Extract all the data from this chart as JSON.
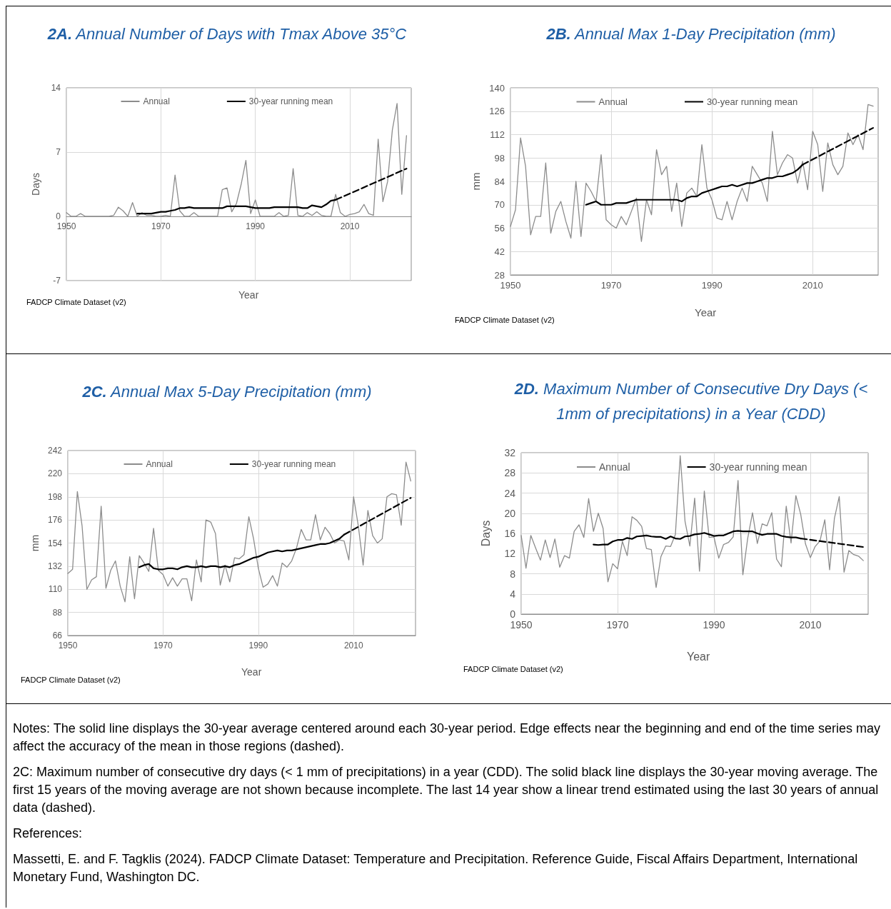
{
  "chart_data": [
    {
      "type": "line",
      "title": "2A. Annual Number of Days with Tmax Above 35°C",
      "xlabel": "Year",
      "ylabel": "Days",
      "annotations": [
        "FADCP Climate Dataset (v2)"
      ],
      "xlim": [
        1950,
        2023
      ],
      "xticks": [
        1950,
        1970,
        1990,
        2010
      ],
      "ylim": [
        -7,
        14
      ],
      "yticks": [
        -7,
        0,
        7,
        14
      ],
      "grid": true,
      "legend": "top",
      "marker": "none",
      "line_style": "solid",
      "x": [
        1950,
        1951,
        1952,
        1953,
        1954,
        1955,
        1956,
        1957,
        1958,
        1959,
        1960,
        1961,
        1962,
        1963,
        1964,
        1965,
        1966,
        1967,
        1968,
        1969,
        1970,
        1971,
        1972,
        1973,
        1974,
        1975,
        1976,
        1977,
        1978,
        1979,
        1980,
        1981,
        1982,
        1983,
        1984,
        1985,
        1986,
        1987,
        1988,
        1989,
        1990,
        1991,
        1992,
        1993,
        1994,
        1995,
        1996,
        1997,
        1998,
        1999,
        2000,
        2001,
        2002,
        2003,
        2004,
        2005,
        2006,
        2007,
        2008,
        2009,
        2010,
        2011,
        2012,
        2013,
        2014,
        2015,
        2016,
        2017,
        2018,
        2019,
        2020,
        2021,
        2022
      ],
      "series": [
        {
          "name": "Annual",
          "color": "#8c8c8c",
          "values": [
            0.4,
            0,
            0,
            0.3,
            0,
            0,
            0,
            0,
            0,
            0,
            0.1,
            1.0,
            0.6,
            0,
            1.5,
            0,
            0.4,
            0.1,
            0.1,
            0,
            0,
            0.1,
            0,
            4.5,
            0.6,
            0,
            0,
            0.4,
            0,
            0,
            0,
            0,
            0,
            2.9,
            3.1,
            0.5,
            1.4,
            3.5,
            6.1,
            0.3,
            1.8,
            0,
            0,
            0,
            0,
            0.4,
            0,
            0.1,
            5.2,
            0.1,
            0,
            0.4,
            0.1,
            0.5,
            0.1,
            0,
            0,
            2.4,
            0.4,
            0,
            0.2,
            0.3,
            0.5,
            1.3,
            0.3,
            0.1,
            8.4,
            1.6,
            3.8,
            9.4,
            12.3,
            2.4,
            8.8
          ]
        },
        {
          "name": "30-year running mean",
          "color": "#000000",
          "x": [
            1965,
            1966,
            1967,
            1968,
            1969,
            1970,
            1971,
            1972,
            1973,
            1974,
            1975,
            1976,
            1977,
            1978,
            1979,
            1980,
            1981,
            1982,
            1983,
            1984,
            1985,
            1986,
            1987,
            1988,
            1989,
            1990,
            1991,
            1992,
            1993,
            1994,
            1995,
            1996,
            1997,
            1998,
            1999,
            2000,
            2001,
            2002,
            2003,
            2004,
            2005,
            2006,
            2007
          ],
          "values": [
            0.3,
            0.3,
            0.3,
            0.3,
            0.4,
            0.5,
            0.5,
            0.6,
            0.7,
            0.9,
            0.9,
            1.0,
            0.9,
            0.9,
            0.9,
            0.9,
            0.9,
            0.9,
            0.9,
            1.1,
            1.1,
            1.1,
            1.1,
            1.1,
            1.0,
            0.9,
            0.9,
            0.9,
            0.9,
            1.0,
            1.0,
            1.0,
            1.0,
            1.0,
            1.0,
            0.9,
            0.9,
            1.2,
            1.1,
            1.0,
            1.3,
            1.7,
            1.8
          ]
        },
        {
          "color": "#000000",
          "line_style": "dashed",
          "x": [
            2007,
            2022
          ],
          "values": [
            1.8,
            5.2
          ]
        }
      ]
    },
    {
      "type": "line",
      "title": "2B. Annual Max 1-Day Precipitation (mm)",
      "xlabel": "Year",
      "ylabel": "mm",
      "annotations": [
        "FADCP Climate Dataset (v2)"
      ],
      "xlim": [
        1950,
        2023
      ],
      "xticks": [
        1950,
        1970,
        1990,
        2010
      ],
      "ylim": [
        28,
        140
      ],
      "yticks": [
        28,
        42,
        56,
        70,
        84,
        98,
        112,
        126,
        140
      ],
      "grid": true,
      "legend": "top",
      "marker": "none",
      "line_style": "solid",
      "x": [
        1950,
        1951,
        1952,
        1953,
        1954,
        1955,
        1956,
        1957,
        1958,
        1959,
        1960,
        1961,
        1962,
        1963,
        1964,
        1965,
        1966,
        1967,
        1968,
        1969,
        1970,
        1971,
        1972,
        1973,
        1974,
        1975,
        1976,
        1977,
        1978,
        1979,
        1980,
        1981,
        1982,
        1983,
        1984,
        1985,
        1986,
        1987,
        1988,
        1989,
        1990,
        1991,
        1992,
        1993,
        1994,
        1995,
        1996,
        1997,
        1998,
        1999,
        2000,
        2001,
        2002,
        2003,
        2004,
        2005,
        2006,
        2007,
        2008,
        2009,
        2010,
        2011,
        2012,
        2013,
        2014,
        2015,
        2016,
        2017,
        2018,
        2019,
        2020,
        2021,
        2022
      ],
      "series": [
        {
          "name": "Annual",
          "color": "#8c8c8c",
          "values": [
            57,
            67,
            110,
            93,
            52,
            63,
            63,
            95,
            53,
            66,
            72,
            60,
            50,
            84,
            51,
            83,
            78,
            72,
            100,
            61,
            58,
            56,
            63,
            58,
            66,
            74,
            48,
            73,
            64,
            103,
            88,
            93,
            66,
            83,
            57,
            77,
            80,
            75,
            106,
            80,
            73,
            62,
            61,
            72,
            61,
            72,
            80,
            72,
            93,
            88,
            83,
            72,
            114,
            88,
            95,
            100,
            98,
            83,
            96,
            79,
            114,
            106,
            78,
            107,
            94,
            88,
            93,
            113,
            106,
            112,
            103,
            130,
            129
          ]
        },
        {
          "name": "30-year running mean",
          "color": "#000000",
          "x": [
            1965,
            1966,
            1967,
            1968,
            1969,
            1970,
            1971,
            1972,
            1973,
            1974,
            1975,
            1976,
            1977,
            1978,
            1979,
            1980,
            1981,
            1982,
            1983,
            1984,
            1985,
            1986,
            1987,
            1988,
            1989,
            1990,
            1991,
            1992,
            1993,
            1994,
            1995,
            1996,
            1997,
            1998,
            1999,
            2000,
            2001,
            2002,
            2003,
            2004,
            2005,
            2006,
            2007,
            2008
          ],
          "values": [
            70,
            71,
            72,
            70,
            70,
            70,
            71,
            71,
            71,
            72,
            73,
            73,
            73,
            73,
            73,
            73,
            73,
            73,
            73,
            72,
            74,
            75,
            75,
            77,
            78,
            79,
            80,
            81,
            81,
            82,
            81,
            82,
            83,
            83,
            84,
            85,
            86,
            86,
            87,
            87,
            88,
            89,
            91,
            94
          ]
        },
        {
          "color": "#000000",
          "line_style": "dashed",
          "x": [
            2008,
            2022
          ],
          "values": [
            94,
            116
          ]
        }
      ]
    },
    {
      "type": "line",
      "title": "2C. Annual Max 5-Day Precipitation (mm)",
      "xlabel": "Year",
      "ylabel": "mm",
      "annotations": [
        "FADCP Climate Dataset (v2)"
      ],
      "xlim": [
        1950,
        2023
      ],
      "xticks": [
        1950,
        1970,
        1990,
        2010
      ],
      "ylim": [
        66,
        242
      ],
      "yticks": [
        66,
        88,
        110,
        132,
        154,
        176,
        198,
        220,
        242
      ],
      "grid": true,
      "legend": "top",
      "marker": "none",
      "line_style": "solid",
      "x": [
        1950,
        1951,
        1952,
        1953,
        1954,
        1955,
        1956,
        1957,
        1958,
        1959,
        1960,
        1961,
        1962,
        1963,
        1964,
        1965,
        1966,
        1967,
        1968,
        1969,
        1970,
        1971,
        1972,
        1973,
        1974,
        1975,
        1976,
        1977,
        1978,
        1979,
        1980,
        1981,
        1982,
        1983,
        1984,
        1985,
        1986,
        1987,
        1988,
        1989,
        1990,
        1991,
        1992,
        1993,
        1994,
        1995,
        1996,
        1997,
        1998,
        1999,
        2000,
        2001,
        2002,
        2003,
        2004,
        2005,
        2006,
        2007,
        2008,
        2009,
        2010,
        2011,
        2012,
        2013,
        2014,
        2015,
        2016,
        2017,
        2018,
        2019,
        2020,
        2021,
        2022
      ],
      "series": [
        {
          "name": "Annual",
          "color": "#8c8c8c",
          "values": [
            125,
            129,
            203,
            170,
            110,
            119,
            122,
            189,
            111,
            128,
            137,
            113,
            98,
            141,
            101,
            142,
            135,
            127,
            168,
            128,
            124,
            113,
            121,
            113,
            120,
            120,
            99,
            138,
            117,
            176,
            174,
            163,
            114,
            133,
            117,
            140,
            139,
            143,
            179,
            158,
            130,
            112,
            115,
            123,
            113,
            135,
            131,
            137,
            149,
            167,
            157,
            157,
            181,
            157,
            169,
            163,
            154,
            157,
            156,
            138,
            198,
            170,
            133,
            185,
            161,
            154,
            158,
            198,
            201,
            200,
            171,
            231,
            213
          ]
        },
        {
          "name": "30-year running mean",
          "color": "#000000",
          "x": [
            1965,
            1966,
            1967,
            1968,
            1969,
            1970,
            1971,
            1972,
            1973,
            1974,
            1975,
            1976,
            1977,
            1978,
            1979,
            1980,
            1981,
            1982,
            1983,
            1984,
            1985,
            1986,
            1987,
            1988,
            1989,
            1990,
            1991,
            1992,
            1993,
            1994,
            1995,
            1996,
            1997,
            1998,
            1999,
            2000,
            2001,
            2002,
            2003,
            2004,
            2005,
            2006,
            2007,
            2008
          ],
          "values": [
            131,
            133,
            134,
            130,
            129,
            129,
            130,
            130,
            129,
            131,
            132,
            131,
            131,
            132,
            131,
            132,
            132,
            131,
            132,
            131,
            133,
            134,
            136,
            138,
            140,
            141,
            143,
            145,
            146,
            147,
            146,
            147,
            147,
            148,
            149,
            150,
            151,
            152,
            153,
            153,
            154,
            156,
            158,
            162
          ]
        },
        {
          "color": "#000000",
          "line_style": "dashed",
          "x": [
            2008,
            2022
          ],
          "values": [
            162,
            197
          ]
        }
      ]
    },
    {
      "type": "line",
      "title": "2D. Maximum Number of Consecutive Dry Days (< 1mm of precipitations) in a Year (CDD)",
      "xlabel": "Year",
      "ylabel": "Days",
      "annotations": [
        "FADCP Climate Dataset (v2)"
      ],
      "xlim": [
        1950,
        2022
      ],
      "xticks": [
        1950,
        1970,
        1990,
        2010
      ],
      "ylim": [
        0,
        32
      ],
      "yticks": [
        0,
        4,
        8,
        12,
        16,
        20,
        24,
        28,
        32
      ],
      "grid": true,
      "legend": "top",
      "marker": "none",
      "line_style": "solid",
      "x": [
        1950,
        1951,
        1952,
        1953,
        1954,
        1955,
        1956,
        1957,
        1958,
        1959,
        1960,
        1961,
        1962,
        1963,
        1964,
        1965,
        1966,
        1967,
        1968,
        1969,
        1970,
        1971,
        1972,
        1973,
        1974,
        1975,
        1976,
        1977,
        1978,
        1979,
        1980,
        1981,
        1982,
        1983,
        1984,
        1985,
        1986,
        1987,
        1988,
        1989,
        1990,
        1991,
        1992,
        1993,
        1994,
        1995,
        1996,
        1997,
        1998,
        1999,
        2000,
        2001,
        2002,
        2003,
        2004,
        2005,
        2006,
        2007,
        2008,
        2009,
        2010,
        2011,
        2012,
        2013,
        2014,
        2015,
        2016,
        2017,
        2018,
        2019,
        2020,
        2021
      ],
      "series": [
        {
          "name": "Annual",
          "color": "#8c8c8c",
          "values": [
            15.6,
            9.1,
            15.6,
            13.1,
            10.7,
            14.7,
            11.2,
            14.9,
            9.3,
            11.6,
            11.1,
            16.4,
            17.7,
            15.2,
            22.9,
            16.4,
            20.0,
            17.0,
            6.4,
            10.0,
            9.0,
            14.4,
            11.6,
            19.3,
            18.6,
            17.4,
            13.0,
            12.8,
            5.3,
            11.4,
            13.5,
            13.4,
            15.8,
            31.4,
            18.4,
            13.5,
            23.0,
            8.5,
            24.4,
            15.2,
            15.3,
            11.1,
            13.8,
            14.2,
            15.3,
            26.5,
            7.8,
            15.0,
            20.1,
            14.0,
            17.9,
            17.5,
            20.1,
            10.9,
            9.4,
            21.4,
            14.1,
            23.5,
            19.8,
            13.9,
            11.2,
            13.4,
            14.5,
            18.7,
            8.8,
            19.0,
            23.3,
            8.3,
            12.6,
            11.8,
            11.5,
            10.6
          ]
        },
        {
          "name": "30-year running mean",
          "color": "#000000",
          "x": [
            1965,
            1966,
            1967,
            1968,
            1969,
            1970,
            1971,
            1972,
            1973,
            1974,
            1975,
            1976,
            1977,
            1978,
            1979,
            1980,
            1981,
            1982,
            1983,
            1984,
            1985,
            1986,
            1987,
            1988,
            1989,
            1990,
            1991,
            1992,
            1993,
            1994,
            1995,
            1996,
            1997,
            1998,
            1999,
            2000,
            2001,
            2002,
            2003,
            2004,
            2005,
            2006,
            2007,
            2008
          ],
          "values": [
            13.8,
            13.7,
            13.8,
            13.8,
            14.4,
            14.7,
            14.7,
            15.1,
            14.9,
            15.4,
            15.5,
            15.6,
            15.4,
            15.3,
            15.3,
            14.9,
            15.4,
            15.0,
            14.9,
            15.4,
            15.5,
            15.8,
            15.9,
            16.1,
            15.8,
            15.5,
            15.6,
            15.6,
            16.0,
            16.4,
            16.5,
            16.4,
            16.4,
            16.4,
            16.0,
            15.7,
            15.9,
            15.9,
            15.9,
            15.5,
            15.3,
            15.2,
            15.2,
            15.0
          ]
        },
        {
          "color": "#000000",
          "line_style": "dashed",
          "x": [
            2008,
            2021
          ],
          "values": [
            15.0,
            13.3
          ]
        }
      ]
    },
    {
      "type": "other",
      "annotations": [
        "Notes: The solid line displays the 30-year average centered around each 30-year period. Edge effects near the beginning and end of the time series may affect the accuracy of the mean in those regions (dashed).",
        "2C: Maximum number of consecutive dry days (< 1 mm of precipitations) in a year (CDD). The solid black line displays the 30-year moving average. The first 15 years of the moving average are not shown because incomplete. The last 14 year show a linear trend estimated using the last 30 years of annual data (dashed).",
        "References:",
        "Massetti, E. and F. Tagklis (2024). FADCP Climate Dataset: Temperature and Precipitation. Reference Guide, Fiscal Affairs Department, International Monetary Fund, Washington DC."
      ]
    }
  ]
}
